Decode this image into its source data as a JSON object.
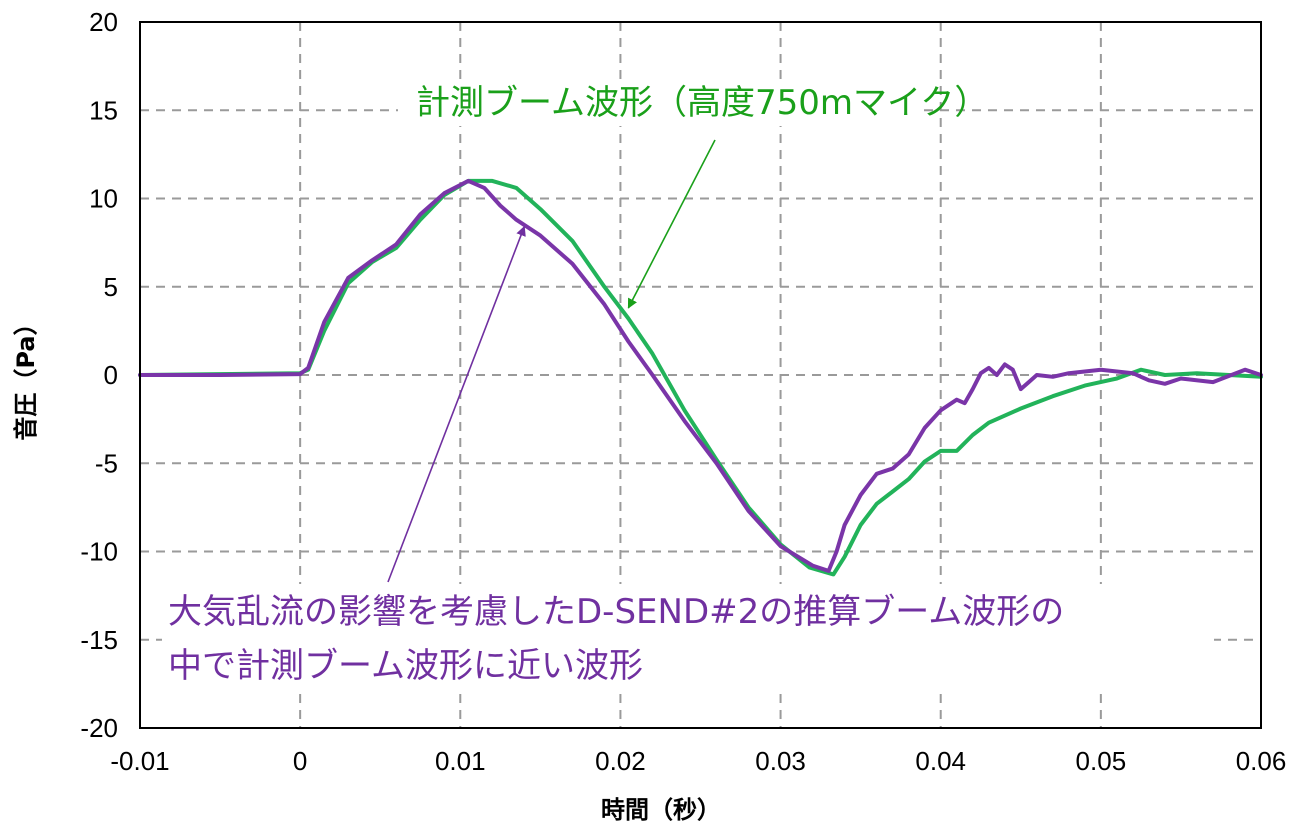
{
  "chart_data": {
    "type": "line",
    "xlabel": "時間（秒）",
    "ylabel": "音圧（Pa）",
    "xlim": [
      -0.01,
      0.06
    ],
    "ylim": [
      -20,
      20
    ],
    "x_ticks": [
      "-0.01",
      "0",
      "0.01",
      "0.02",
      "0.03",
      "0.04",
      "0.05",
      "0.06"
    ],
    "y_ticks": [
      "20",
      "15",
      "10",
      "5",
      "0",
      "-5",
      "-10",
      "-15",
      "-20"
    ],
    "grid": true,
    "series": [
      {
        "key": "measured",
        "color": "#22b35a",
        "points": [
          [
            -0.01,
            0
          ],
          [
            -0.005,
            0.05
          ],
          [
            0.0,
            0.1
          ],
          [
            0.0005,
            0.3
          ],
          [
            0.0015,
            2.5
          ],
          [
            0.003,
            5.2
          ],
          [
            0.0045,
            6.4
          ],
          [
            0.006,
            7.2
          ],
          [
            0.0075,
            8.8
          ],
          [
            0.009,
            10.2
          ],
          [
            0.0105,
            11.0
          ],
          [
            0.012,
            11.0
          ],
          [
            0.0135,
            10.6
          ],
          [
            0.015,
            9.4
          ],
          [
            0.017,
            7.6
          ],
          [
            0.019,
            5.0
          ],
          [
            0.0205,
            3.2
          ],
          [
            0.022,
            1.2
          ],
          [
            0.024,
            -2.0
          ],
          [
            0.026,
            -4.8
          ],
          [
            0.028,
            -7.5
          ],
          [
            0.03,
            -9.6
          ],
          [
            0.0318,
            -10.9
          ],
          [
            0.0333,
            -11.3
          ],
          [
            0.034,
            -10.3
          ],
          [
            0.035,
            -8.5
          ],
          [
            0.036,
            -7.3
          ],
          [
            0.037,
            -6.6
          ],
          [
            0.038,
            -5.9
          ],
          [
            0.039,
            -4.9
          ],
          [
            0.04,
            -4.3
          ],
          [
            0.041,
            -4.3
          ],
          [
            0.042,
            -3.4
          ],
          [
            0.043,
            -2.7
          ],
          [
            0.045,
            -1.9
          ],
          [
            0.047,
            -1.2
          ],
          [
            0.049,
            -0.6
          ],
          [
            0.051,
            -0.2
          ],
          [
            0.0525,
            0.3
          ],
          [
            0.054,
            0.0
          ],
          [
            0.056,
            0.1
          ],
          [
            0.058,
            0.0
          ],
          [
            0.06,
            -0.1
          ]
        ]
      },
      {
        "key": "estimated",
        "color": "#7a35a8",
        "points": [
          [
            -0.01,
            0
          ],
          [
            -0.005,
            0.0
          ],
          [
            0.0,
            0.05
          ],
          [
            0.0005,
            0.4
          ],
          [
            0.0015,
            3.0
          ],
          [
            0.003,
            5.5
          ],
          [
            0.0045,
            6.5
          ],
          [
            0.006,
            7.4
          ],
          [
            0.0075,
            9.1
          ],
          [
            0.009,
            10.3
          ],
          [
            0.0105,
            11.0
          ],
          [
            0.0115,
            10.6
          ],
          [
            0.0125,
            9.6
          ],
          [
            0.0135,
            8.8
          ],
          [
            0.015,
            7.9
          ],
          [
            0.017,
            6.3
          ],
          [
            0.019,
            4.0
          ],
          [
            0.0205,
            1.9
          ],
          [
            0.022,
            0.0
          ],
          [
            0.024,
            -2.6
          ],
          [
            0.026,
            -5.0
          ],
          [
            0.028,
            -7.7
          ],
          [
            0.03,
            -9.7
          ],
          [
            0.032,
            -10.8
          ],
          [
            0.033,
            -11.1
          ],
          [
            0.0335,
            -10.0
          ],
          [
            0.034,
            -8.5
          ],
          [
            0.035,
            -6.8
          ],
          [
            0.036,
            -5.6
          ],
          [
            0.037,
            -5.3
          ],
          [
            0.038,
            -4.5
          ],
          [
            0.039,
            -3.0
          ],
          [
            0.04,
            -2.0
          ],
          [
            0.041,
            -1.4
          ],
          [
            0.0415,
            -1.6
          ],
          [
            0.042,
            -0.8
          ],
          [
            0.0425,
            0.1
          ],
          [
            0.043,
            0.4
          ],
          [
            0.0435,
            0.0
          ],
          [
            0.044,
            0.6
          ],
          [
            0.0445,
            0.3
          ],
          [
            0.045,
            -0.8
          ],
          [
            0.0455,
            -0.4
          ],
          [
            0.046,
            0.0
          ],
          [
            0.047,
            -0.1
          ],
          [
            0.048,
            0.1
          ],
          [
            0.049,
            0.2
          ],
          [
            0.05,
            0.3
          ],
          [
            0.052,
            0.1
          ],
          [
            0.053,
            -0.3
          ],
          [
            0.054,
            -0.5
          ],
          [
            0.055,
            -0.2
          ],
          [
            0.057,
            -0.4
          ],
          [
            0.059,
            0.3
          ],
          [
            0.06,
            0.0
          ]
        ]
      }
    ],
    "annotations": [
      {
        "key": "measured",
        "text": "計測ブーム波形（高度750mマイク）",
        "color": "#1aa01a",
        "arrow_to": [
          0.0205,
          3.8
        ]
      },
      {
        "key": "estimated",
        "lines": [
          "大気乱流の影響を考慮したD-SEND#2の推算ブーム波形の",
          "中で計測ブーム波形に近い波形"
        ],
        "color": "#7030a0",
        "arrow_to": [
          0.014,
          8.4
        ]
      }
    ]
  }
}
